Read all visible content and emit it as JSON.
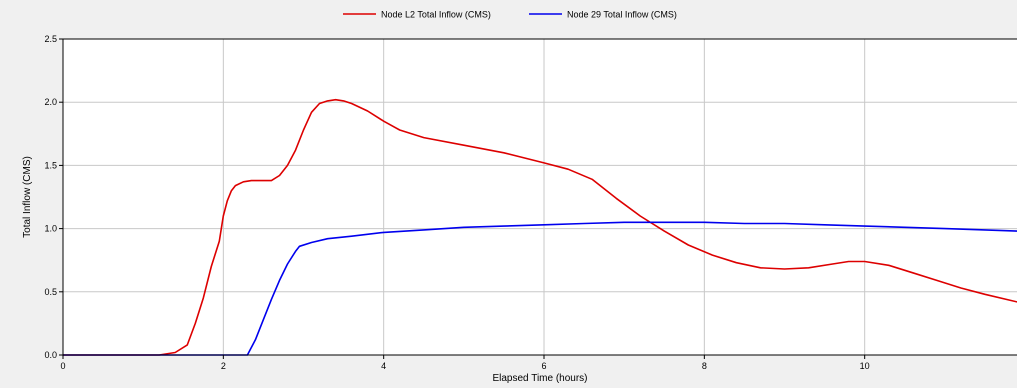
{
  "colors": {
    "background": "#f0f0f0",
    "plot_area": "#ffffff",
    "grid": "#c8c8c8",
    "axis": "#000000",
    "node_l2": "#dd0000",
    "node_29": "#0000ee"
  },
  "chart_data": {
    "type": "line",
    "title": "",
    "xlabel": "Elapsed Time (hours)",
    "ylabel": "Total Inflow (CMS)",
    "xlim": [
      0,
      11.9
    ],
    "ylim": [
      0,
      2.5
    ],
    "x_ticks": [
      0,
      2,
      4,
      6,
      8,
      10
    ],
    "x_tick_labels": [
      "0",
      "2",
      "4",
      "6",
      "8",
      "10"
    ],
    "y_ticks": [
      0,
      0.5,
      1.0,
      1.5,
      2.0,
      2.5
    ],
    "y_tick_labels": [
      "0.0",
      "0.5",
      "1.0",
      "1.5",
      "2.0",
      "2.5"
    ],
    "grid": true,
    "legend_position": "top-center",
    "series": [
      {
        "name": "Node L2 Total Inflow (CMS)",
        "color": "#dd0000",
        "x": [
          0,
          1.2,
          1.4,
          1.55,
          1.65,
          1.75,
          1.85,
          1.95,
          2.0,
          2.05,
          2.1,
          2.15,
          2.25,
          2.35,
          2.5,
          2.6,
          2.7,
          2.8,
          2.9,
          3.0,
          3.1,
          3.2,
          3.3,
          3.4,
          3.5,
          3.6,
          3.8,
          4.0,
          4.2,
          4.5,
          5.0,
          5.5,
          6.0,
          6.3,
          6.6,
          6.9,
          7.2,
          7.5,
          7.8,
          8.1,
          8.4,
          8.7,
          9.0,
          9.3,
          9.6,
          9.8,
          10.0,
          10.3,
          10.6,
          10.9,
          11.2,
          11.5,
          11.9
        ],
        "y": [
          0,
          0,
          0.02,
          0.08,
          0.25,
          0.45,
          0.7,
          0.9,
          1.1,
          1.22,
          1.3,
          1.34,
          1.37,
          1.38,
          1.38,
          1.38,
          1.42,
          1.5,
          1.62,
          1.78,
          1.92,
          1.99,
          2.01,
          2.02,
          2.01,
          1.99,
          1.93,
          1.85,
          1.78,
          1.72,
          1.66,
          1.6,
          1.52,
          1.47,
          1.39,
          1.24,
          1.1,
          0.98,
          0.87,
          0.79,
          0.73,
          0.69,
          0.68,
          0.69,
          0.72,
          0.74,
          0.74,
          0.71,
          0.65,
          0.59,
          0.53,
          0.48,
          0.42
        ]
      },
      {
        "name": "Node 29 Total Inflow (CMS)",
        "color": "#0000ee",
        "x": [
          0,
          2.3,
          2.4,
          2.5,
          2.6,
          2.7,
          2.8,
          2.9,
          2.95,
          3.1,
          3.3,
          3.6,
          4.0,
          4.5,
          5.0,
          5.5,
          6.0,
          6.5,
          7.0,
          7.5,
          8.0,
          8.5,
          9.0,
          9.5,
          10.0,
          10.5,
          11.0,
          11.5,
          11.9
        ],
        "y": [
          0,
          0,
          0.12,
          0.28,
          0.44,
          0.59,
          0.72,
          0.82,
          0.86,
          0.89,
          0.92,
          0.94,
          0.97,
          0.99,
          1.01,
          1.02,
          1.03,
          1.04,
          1.05,
          1.05,
          1.05,
          1.04,
          1.04,
          1.03,
          1.02,
          1.01,
          1.0,
          0.99,
          0.98
        ]
      }
    ]
  }
}
